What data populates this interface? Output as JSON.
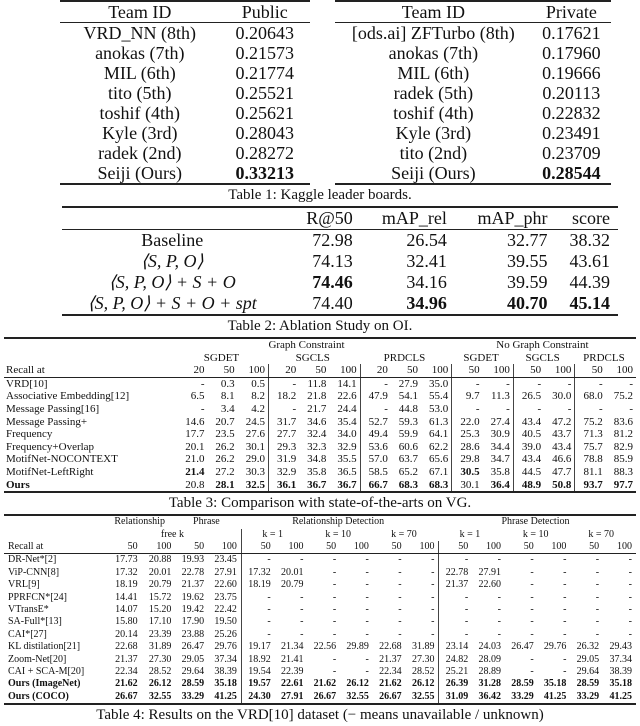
{
  "table1": {
    "left": {
      "header": [
        "Team ID",
        "Public"
      ],
      "rows": [
        [
          "VRD_NN (8th)",
          "0.20643"
        ],
        [
          "anokas (7th)",
          "0.21573"
        ],
        [
          "MIL (6th)",
          "0.21774"
        ],
        [
          "tito (5th)",
          "0.25521"
        ],
        [
          "toshif (4th)",
          "0.25621"
        ],
        [
          "Kyle (3rd)",
          "0.28043"
        ],
        [
          "radek (2nd)",
          "0.28272"
        ],
        [
          "Seiji (Ours)",
          "0.33213"
        ]
      ],
      "bold": [
        [
          7,
          1
        ]
      ]
    },
    "right": {
      "header": [
        "Team ID",
        "Private"
      ],
      "rows": [
        [
          "[ods.ai] ZFTurbo (8th)",
          "0.17621"
        ],
        [
          "anokas (7th)",
          "0.17960"
        ],
        [
          "MIL (6th)",
          "0.19666"
        ],
        [
          "radek (5th)",
          "0.20113"
        ],
        [
          "toshif (4th)",
          "0.22832"
        ],
        [
          "Kyle (3rd)",
          "0.23491"
        ],
        [
          "tito (2nd)",
          "0.23709"
        ],
        [
          "Seiji (Ours)",
          "0.28544"
        ]
      ],
      "bold": [
        [
          7,
          1
        ]
      ]
    },
    "caption": "Table 1:  Kaggle leader boards."
  },
  "table2": {
    "header": [
      "",
      "R@50",
      "mAP_rel",
      "mAP_phr",
      "score"
    ],
    "rows": [
      [
        "Baseline",
        "72.98",
        "26.54",
        "32.77",
        "38.32"
      ],
      [
        "⟨S, P, O⟩",
        "74.13",
        "32.41",
        "39.55",
        "43.61"
      ],
      [
        "⟨S, P, O⟩ + S + O",
        "74.46",
        "34.16",
        "39.59",
        "44.39"
      ],
      [
        "⟨S, P, O⟩ + S + O + spt",
        "74.40",
        "34.96",
        "40.70",
        "45.14"
      ]
    ],
    "bold": [
      [
        2,
        1
      ],
      [
        3,
        2
      ],
      [
        3,
        3
      ],
      [
        3,
        4
      ]
    ],
    "caption": "Table 2:  Ablation Study on OI."
  },
  "table3": {
    "header_groups": [
      "Graph Constraint",
      "No Graph Constraint"
    ],
    "header_tasks": [
      "SGDET",
      "SGCLS",
      "PRDCLS",
      "SGDET",
      "SGCLS",
      "PRDCLS"
    ],
    "header_cols": [
      "Recall at",
      "20",
      "50",
      "100",
      "20",
      "50",
      "100",
      "20",
      "50",
      "100",
      "50",
      "100",
      "50",
      "100",
      "50",
      "100"
    ],
    "rows": [
      [
        "VRD[10]",
        "-",
        "0.3",
        "0.5",
        "-",
        "11.8",
        "14.1",
        "-",
        "27.9",
        "35.0",
        "-",
        "-",
        "-",
        "-",
        "-",
        "-"
      ],
      [
        "Associative Embedding[12]",
        "6.5",
        "8.1",
        "8.2",
        "18.2",
        "21.8",
        "22.6",
        "47.9",
        "54.1",
        "55.4",
        "9.7",
        "11.3",
        "26.5",
        "30.0",
        "68.0",
        "75.2"
      ],
      [
        "Message Passing[16]",
        "-",
        "3.4",
        "4.2",
        "-",
        "21.7",
        "24.4",
        "-",
        "44.8",
        "53.0",
        "-",
        "-",
        "-",
        "-",
        "-",
        "-"
      ],
      [
        "Message Passing+",
        "14.6",
        "20.7",
        "24.5",
        "31.7",
        "34.6",
        "35.4",
        "52.7",
        "59.3",
        "61.3",
        "22.0",
        "27.4",
        "43.4",
        "47.2",
        "75.2",
        "83.6"
      ],
      [
        "Frequency",
        "17.7",
        "23.5",
        "27.6",
        "27.7",
        "32.4",
        "34.0",
        "49.4",
        "59.9",
        "64.1",
        "25.3",
        "30.9",
        "40.5",
        "43.7",
        "71.3",
        "81.2"
      ],
      [
        "Frequency+Overlap",
        "20.1",
        "26.2",
        "30.1",
        "29.3",
        "32.3",
        "32.9",
        "53.6",
        "60.6",
        "62.2",
        "28.6",
        "34.4",
        "39.0",
        "43.4",
        "75.7",
        "82.9"
      ],
      [
        "MotifNet-NOCONTEXT",
        "21.0",
        "26.2",
        "29.0",
        "31.9",
        "34.8",
        "35.5",
        "57.0",
        "63.7",
        "65.6",
        "29.8",
        "34.7",
        "43.4",
        "46.6",
        "78.8",
        "85.9"
      ],
      [
        "MotifNet-LeftRight",
        "21.4",
        "27.2",
        "30.3",
        "32.9",
        "35.8",
        "36.5",
        "58.5",
        "65.2",
        "67.1",
        "30.5",
        "35.8",
        "44.5",
        "47.7",
        "81.1",
        "88.3"
      ],
      [
        "Ours",
        "20.8",
        "28.1",
        "32.5",
        "36.1",
        "36.7",
        "36.7",
        "66.7",
        "68.3",
        "68.3",
        "30.1",
        "36.4",
        "48.9",
        "50.8",
        "93.7",
        "97.7"
      ]
    ],
    "bold": [
      [
        7,
        1
      ],
      [
        7,
        10
      ],
      [
        8,
        0
      ],
      [
        8,
        2
      ],
      [
        8,
        3
      ],
      [
        8,
        4
      ],
      [
        8,
        5
      ],
      [
        8,
        6
      ],
      [
        8,
        7
      ],
      [
        8,
        8
      ],
      [
        8,
        9
      ],
      [
        8,
        11
      ],
      [
        8,
        12
      ],
      [
        8,
        13
      ],
      [
        8,
        14
      ],
      [
        8,
        15
      ]
    ],
    "caption": "Table 3:  Comparison with state-of-the-arts on VG."
  },
  "table4": {
    "header_top": [
      "Relationship",
      "Phrase",
      "Relationship Detection",
      "Phrase Detection"
    ],
    "header_k": [
      "free k",
      "k = 1",
      "k = 10",
      "k = 70",
      "k = 1",
      "k = 10",
      "k = 70"
    ],
    "header_cols": [
      "Recall at",
      "50",
      "100",
      "50",
      "100",
      "50",
      "100",
      "50",
      "100",
      "50",
      "100",
      "50",
      "100",
      "50",
      "100",
      "50",
      "100"
    ],
    "rows": [
      [
        "DR-Net*[2]",
        "17.73",
        "20.88",
        "19.93",
        "23.45",
        "-",
        "-",
        "-",
        "-",
        "-",
        "-",
        "-",
        "-",
        "-",
        "-",
        "-",
        "-"
      ],
      [
        "ViP-CNN[8]",
        "17.32",
        "20.01",
        "22.78",
        "27.91",
        "17.32",
        "20.01",
        "-",
        "-",
        "-",
        "-",
        "22.78",
        "27.91",
        "-",
        "-",
        "-",
        "-"
      ],
      [
        "VRL[9]",
        "18.19",
        "20.79",
        "21.37",
        "22.60",
        "18.19",
        "20.79",
        "-",
        "-",
        "-",
        "-",
        "21.37",
        "22.60",
        "-",
        "-",
        "-",
        "-"
      ],
      [
        "PPRFCN*[24]",
        "14.41",
        "15.72",
        "19.62",
        "23.75",
        "-",
        "-",
        "-",
        "-",
        "-",
        "-",
        "-",
        "-",
        "-",
        "-",
        "-",
        "-"
      ],
      [
        "VTransE*",
        "14.07",
        "15.20",
        "19.42",
        "22.42",
        "-",
        "-",
        "-",
        "-",
        "-",
        "-",
        "-",
        "-",
        "-",
        "-",
        "-",
        "-"
      ],
      [
        "SA-Full*[13]",
        "15.80",
        "17.10",
        "17.90",
        "19.50",
        "-",
        "-",
        "-",
        "-",
        "-",
        "-",
        "-",
        "-",
        "-",
        "-",
        "-",
        "-"
      ],
      [
        "CAI*[27]",
        "20.14",
        "23.39",
        "23.88",
        "25.26",
        "-",
        "-",
        "-",
        "-",
        "-",
        "-",
        "-",
        "-",
        "-",
        "-",
        "-",
        "-"
      ],
      [
        "KL distilation[21]",
        "22.68",
        "31.89",
        "26.47",
        "29.76",
        "19.17",
        "21.34",
        "22.56",
        "29.89",
        "22.68",
        "31.89",
        "23.14",
        "24.03",
        "26.47",
        "29.76",
        "26.32",
        "29.43"
      ],
      [
        "Zoom-Net[20]",
        "21.37",
        "27.30",
        "29.05",
        "37.34",
        "18.92",
        "21.41",
        "-",
        "-",
        "21.37",
        "27.30",
        "24.82",
        "28.09",
        "-",
        "-",
        "29.05",
        "37.34"
      ],
      [
        "CAI + SCA-M[20]",
        "22.34",
        "28.52",
        "29.64",
        "38.39",
        "19.54",
        "22.39",
        "-",
        "-",
        "22.34",
        "28.52",
        "25.21",
        "28.89",
        "-",
        "-",
        "29.64",
        "38.39"
      ],
      [
        "Ours (ImageNet)",
        "21.62",
        "26.12",
        "28.59",
        "35.18",
        "19.57",
        "22.61",
        "21.62",
        "26.12",
        "21.62",
        "26.12",
        "26.39",
        "31.28",
        "28.59",
        "35.18",
        "28.59",
        "35.18"
      ],
      [
        "Ours (COCO)",
        "26.67",
        "32.55",
        "33.29",
        "41.25",
        "24.30",
        "27.91",
        "26.67",
        "32.55",
        "26.67",
        "32.55",
        "31.09",
        "36.42",
        "33.29",
        "41.25",
        "33.29",
        "41.25"
      ]
    ],
    "bold_rows": [
      10,
      11
    ],
    "caption": "Table 4:  Results on the VRD[10] dataset (− means unavailable / unknown)"
  }
}
